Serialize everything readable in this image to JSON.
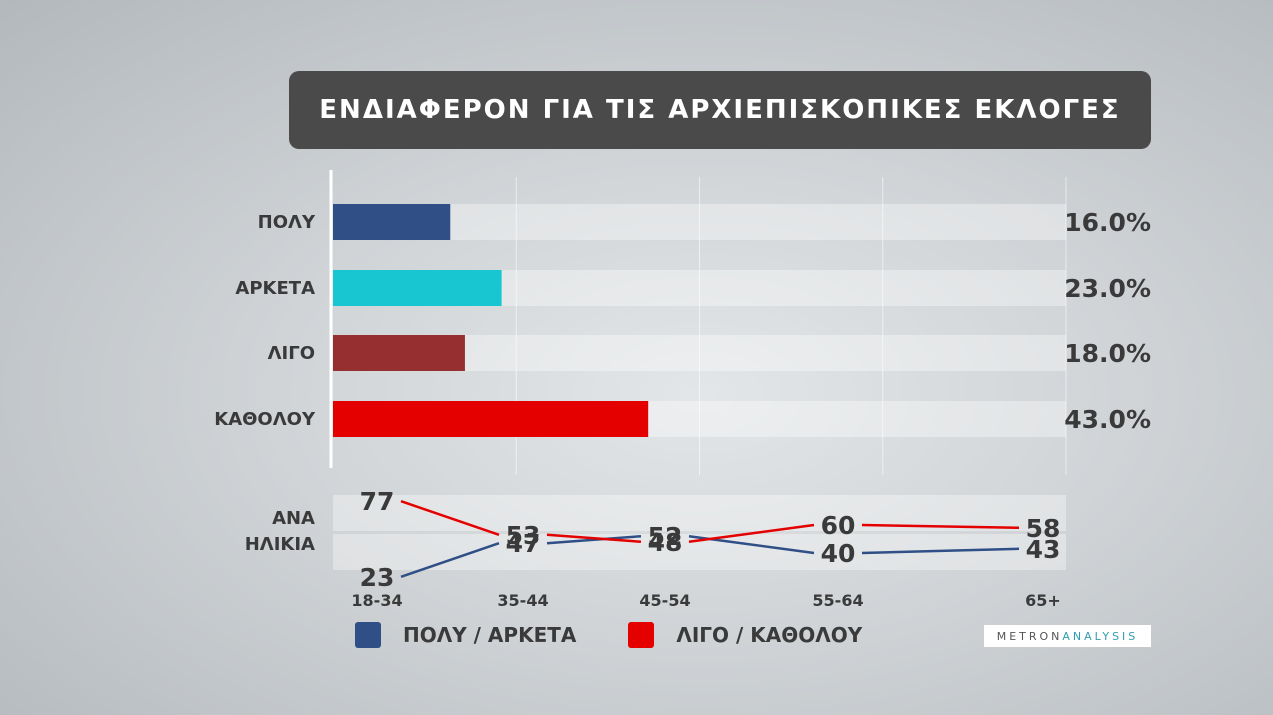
{
  "title": "ΕΝΔΙΑΦΕΡΟΝ ΓΙΑ ΤΙΣ ΑΡΧΙΕΠΙΣΚΟΠΙΚΕΣ ΕΚΛΟΓΕΣ",
  "chart_data": [
    {
      "type": "bar",
      "orientation": "horizontal",
      "categories": [
        "ΠΟΛΥ",
        "ΑΡΚΕΤΑ",
        "ΛΙΓΟ",
        "ΚΑΘΟΛΟΥ"
      ],
      "values": [
        16.0,
        23.0,
        18.0,
        43.0
      ],
      "value_labels": [
        "16.0%",
        "23.0%",
        "18.0%",
        "43.0%"
      ],
      "colors": [
        "#2f4f86",
        "#17c6d0",
        "#963030",
        "#e50000"
      ],
      "xlim": [
        0,
        100
      ],
      "grid": true
    },
    {
      "type": "line",
      "row_label_lines": [
        "ΑΝΑ",
        "ΗΛΙΚΙΑ"
      ],
      "categories": [
        "18-34",
        "35-44",
        "45-54",
        "55-64",
        "65+"
      ],
      "series": [
        {
          "name": "ΠΟΛΥ / ΑΡΚΕΤΑ",
          "values": [
            23,
            47,
            52,
            40,
            43
          ],
          "color": "#2f4f86"
        },
        {
          "name": "ΛΙΓΟ / ΚΑΘΟΛΟΥ",
          "values": [
            77,
            53,
            48,
            60,
            58
          ],
          "color": "#e50000"
        }
      ],
      "legend_position": "bottom"
    }
  ],
  "legend": [
    {
      "label": "ΠΟΛΥ / ΑΡΚΕΤΑ",
      "color": "#2f4f86"
    },
    {
      "label": "ΛΙΓΟ / ΚΑΘΟΛΟΥ",
      "color": "#e50000"
    }
  ],
  "logo": {
    "part1": "METRON",
    "part2": "ANALYSIS"
  }
}
